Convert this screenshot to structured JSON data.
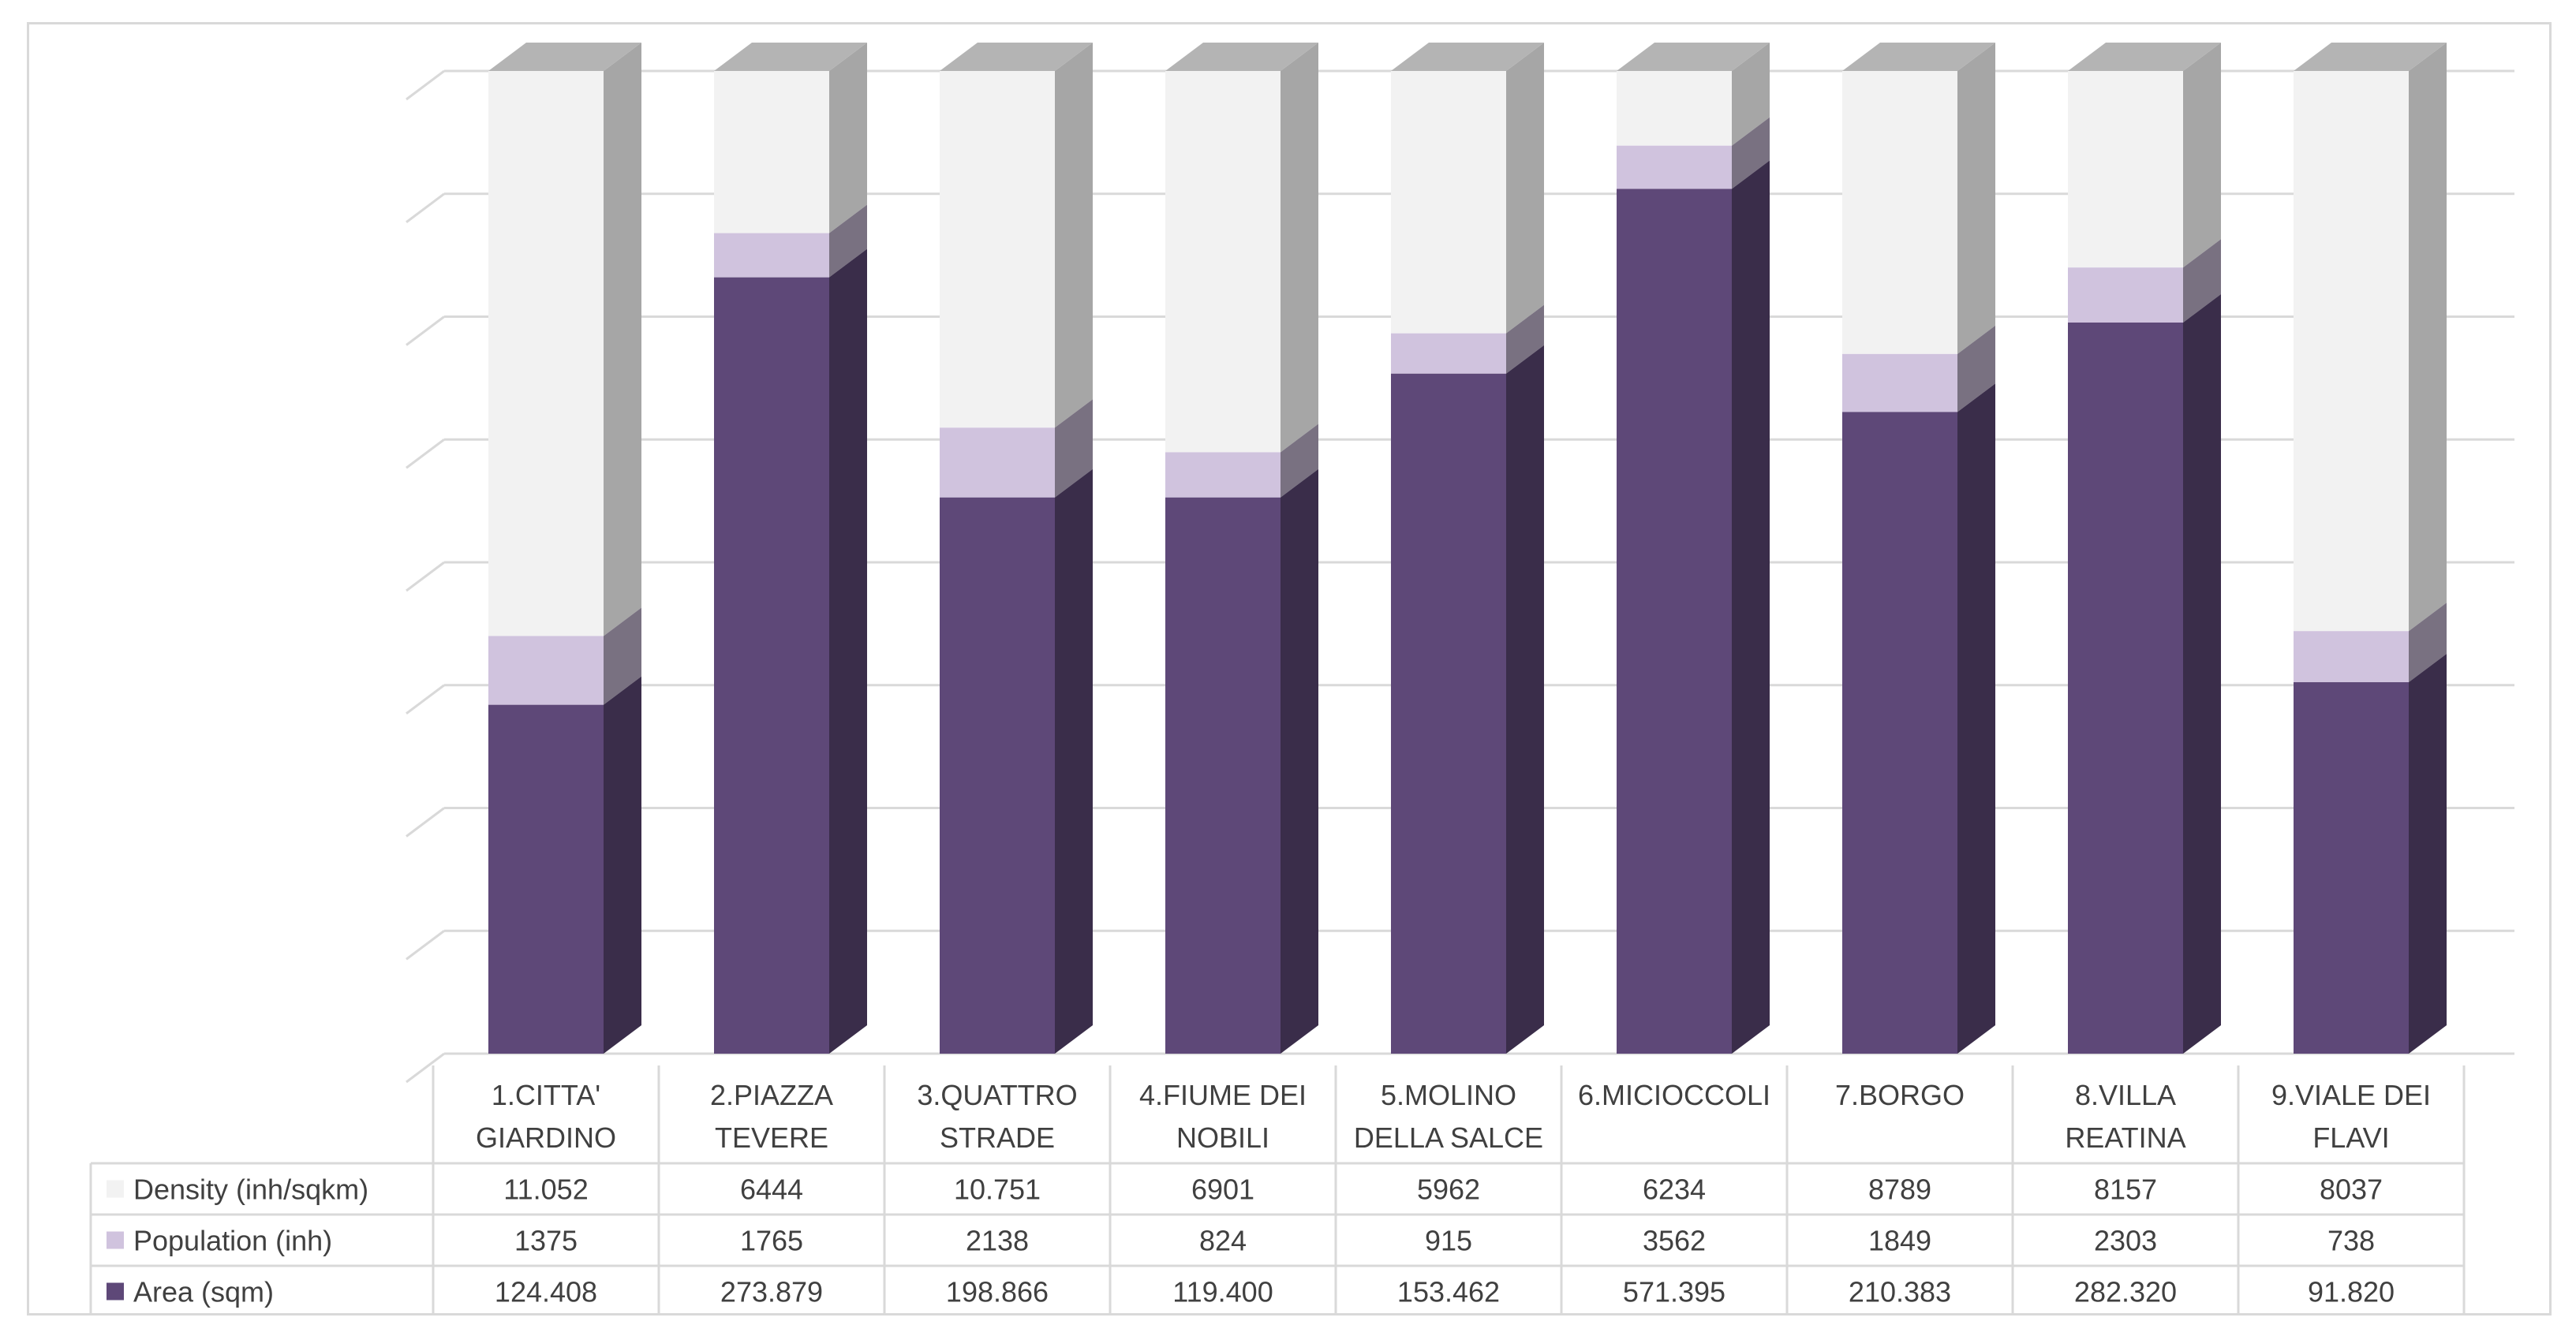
{
  "chart_data": {
    "type": "bar",
    "subtype": "100% stacked 3D column with data table",
    "title": "",
    "xlabel": "",
    "ylabel": "",
    "ylim": [
      0,
      100
    ],
    "grid": true,
    "legend": "in data table (left)",
    "categories": [
      [
        "1.CITTA'",
        "GIARDINO"
      ],
      [
        "2.PIAZZA",
        "TEVERE"
      ],
      [
        "3.QUATTRO",
        "STRADE"
      ],
      [
        "4.FIUME DEI",
        "NOBILI"
      ],
      [
        "5.MOLINO",
        "DELLA SALCE"
      ],
      [
        "6.MICIOCCOLI"
      ],
      [
        "7.BORGO"
      ],
      [
        "8.VILLA",
        "REATINA"
      ],
      [
        "9.VIALE DEI",
        "FLAVI"
      ]
    ],
    "series": [
      {
        "name": "Density (inh/sqkm)",
        "color": "#f2f2f2",
        "values": [
          11052,
          6444,
          10751,
          6901,
          5962,
          6234,
          8789,
          8157,
          8037
        ],
        "labels": [
          "11.052",
          "6444",
          "10.751",
          "6901",
          "5962",
          "6234",
          "8789",
          "8157",
          "8037"
        ]
      },
      {
        "name": "Population (inh)",
        "color": "#d0c3de",
        "values": [
          1375,
          1765,
          2138,
          824,
          915,
          3562,
          1849,
          2303,
          738
        ],
        "labels": [
          "1375",
          "1765",
          "2138",
          "824",
          "915",
          "3562",
          "1849",
          "2303",
          "738"
        ]
      },
      {
        "name": "Area (sqm)",
        "color": "#5e4878",
        "values": [
          124408,
          273879,
          198866,
          119400,
          153462,
          571395,
          210383,
          282320,
          91820
        ],
        "labels": [
          "124.408",
          "273.879",
          "198.866",
          "119.400",
          "153.462",
          "571.395",
          "210.383",
          "282.320",
          "91.820"
        ]
      }
    ],
    "stack_percent_top_down": [
      [
        57.5,
        7.0,
        35.5
      ],
      [
        16.5,
        4.5,
        79.0
      ],
      [
        36.3,
        7.1,
        56.6
      ],
      [
        38.8,
        4.6,
        56.6
      ],
      [
        26.7,
        4.1,
        69.2
      ],
      [
        7.6,
        4.4,
        88.0
      ],
      [
        28.8,
        5.9,
        65.3
      ],
      [
        20.0,
        5.6,
        74.4
      ],
      [
        57.0,
        5.2,
        37.8
      ]
    ]
  }
}
